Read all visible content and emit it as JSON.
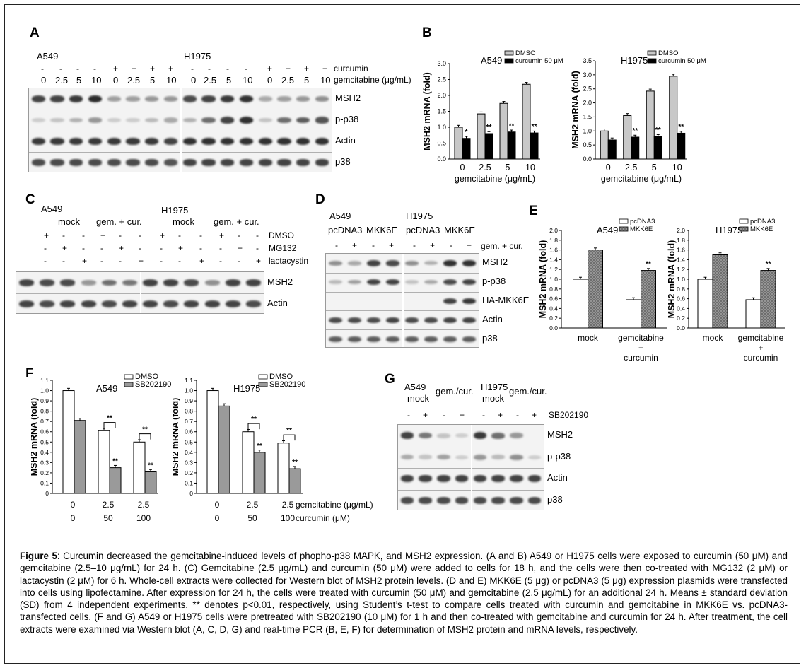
{
  "panels": {
    "A": {
      "label": "A",
      "cell_a549": "A549",
      "cell_h1975": "H1975",
      "curcumin_signs": [
        "-",
        "-",
        "-",
        "-",
        "+",
        "+",
        "+",
        "+",
        "-",
        "-",
        "-",
        "-",
        "+",
        "+",
        "+",
        "+"
      ],
      "gem_doses": [
        "0",
        "2.5",
        "5",
        "10",
        "0",
        "2.5",
        "5",
        "10",
        "0",
        "2.5",
        "5",
        "10",
        "0",
        "2.5",
        "5",
        "10"
      ],
      "row_curcumin": "curcumin",
      "row_gemcitabine": "gemcitabine (μg/mL)",
      "blots": [
        "MSH2",
        "p-p38",
        "Actin",
        "p38"
      ]
    },
    "B": {
      "label": "B",
      "xlabel": "gemcitabine (μg/mL)",
      "ylabel": "MSH2 mRNA (fold)"
    },
    "C": {
      "label": "C",
      "cell_a549": "A549",
      "cell_h1975": "H1975",
      "mock": "mock",
      "gemcur": "gem. + cur.",
      "rows": [
        {
          "label": "DMSO",
          "signs": [
            "+",
            "-",
            "-",
            "+",
            "-",
            "-",
            "+",
            "-",
            "-",
            "+",
            "-",
            "-"
          ]
        },
        {
          "label": "MG132",
          "signs": [
            "-",
            "+",
            "-",
            "-",
            "+",
            "-",
            "-",
            "+",
            "-",
            "-",
            "+",
            "-"
          ]
        },
        {
          "label": "lactacystin",
          "signs": [
            "-",
            "-",
            "+",
            "-",
            "-",
            "+",
            "-",
            "-",
            "+",
            "-",
            "-",
            "+"
          ]
        }
      ],
      "blots": [
        "MSH2",
        "Actin"
      ]
    },
    "D": {
      "label": "D",
      "cell_a549": "A549",
      "cell_h1975": "H1975",
      "pcdna3": "pcDNA3",
      "mkk6e": "MKK6E",
      "signs": [
        "-",
        "+",
        "-",
        "+",
        "-",
        "+",
        "-",
        "+"
      ],
      "row_label": "gem. + cur.",
      "blots": [
        "MSH2",
        "p-p38",
        "HA-MKK6E",
        "Actin",
        "p38"
      ]
    },
    "E": {
      "label": "E",
      "ylabel": "MSH2 mRNA (fold)",
      "xcat_mock": "mock",
      "xcat_gem1": "gemcitabine",
      "xcat_gem2": "+",
      "xcat_gem3": "curcumin"
    },
    "F": {
      "label": "F",
      "ylabel": "MSH2 mRNA (fold)",
      "gem_label": "gemcitabine (μg/mL)",
      "cur_label": "curcumin (μM)",
      "gem_vals": [
        "0",
        "2.5",
        "2.5"
      ],
      "cur_vals": [
        "0",
        "50",
        "100"
      ],
      "sig": "**"
    },
    "G": {
      "label": "G",
      "cell_a549": "A549",
      "cell_h1975": "H1975",
      "mock": "mock",
      "gemcur": "gem./cur.",
      "signs": [
        "-",
        "+",
        "-",
        "+",
        "-",
        "+",
        "-",
        "+"
      ],
      "row_label": "SB202190",
      "blots": [
        "MSH2",
        "p-p38",
        "Actin",
        "p38"
      ]
    }
  },
  "chart_data": [
    {
      "panel": "B-A549",
      "type": "bar",
      "title": "A549",
      "xlabel": "gemcitabine (μg/mL)",
      "ylabel": "MSH2 mRNA (fold)",
      "categories": [
        "0",
        "2.5",
        "5",
        "10"
      ],
      "ylim": [
        0,
        3.0
      ],
      "yticks": [
        "0.0",
        "0.5",
        "1.0",
        "1.5",
        "2.0",
        "2.5",
        "3.0"
      ],
      "series": [
        {
          "name": "DMSO",
          "values": [
            1.0,
            1.42,
            1.75,
            2.35
          ]
        },
        {
          "name": "curcumin 50 μM",
          "values": [
            0.65,
            0.8,
            0.85,
            0.82
          ]
        }
      ],
      "annotations": [
        "*",
        "**",
        "**",
        "**"
      ],
      "colors": {
        "DMSO": "#c8c8c8",
        "curcumin 50 μM": "#000000"
      },
      "legend": "top"
    },
    {
      "panel": "B-H1975",
      "type": "bar",
      "title": "H1975",
      "xlabel": "gemcitabine (μg/mL)",
      "ylabel": "MSH2 mRNA (fold)",
      "categories": [
        "0",
        "2.5",
        "5",
        "10"
      ],
      "ylim": [
        0,
        3.5
      ],
      "yticks": [
        "0.0",
        "0.5",
        "1.0",
        "1.5",
        "2.0",
        "2.5",
        "3.0",
        "3.5"
      ],
      "series": [
        {
          "name": "DMSO",
          "values": [
            1.0,
            1.55,
            2.42,
            2.95
          ]
        },
        {
          "name": "curcumin 50 μM",
          "values": [
            0.68,
            0.78,
            0.8,
            0.92
          ]
        }
      ],
      "annotations": [
        "",
        "**",
        "**",
        "**"
      ],
      "colors": {
        "DMSO": "#c8c8c8",
        "curcumin 50 μM": "#000000"
      },
      "legend": "top"
    },
    {
      "panel": "E-A549",
      "type": "bar",
      "title": "A549",
      "ylabel": "MSH2 mRNA (fold)",
      "categories": [
        "mock",
        "gemcitabine + curcumin"
      ],
      "ylim": [
        0,
        2.0
      ],
      "yticks": [
        "0.0",
        "0.2",
        "0.4",
        "0.6",
        "0.8",
        "1.0",
        "1.2",
        "1.4",
        "1.6",
        "1.8",
        "2.0"
      ],
      "series": [
        {
          "name": "pcDNA3",
          "values": [
            1.0,
            0.58
          ]
        },
        {
          "name": "MKK6E",
          "values": [
            1.6,
            1.18
          ]
        }
      ],
      "annotations": [
        "",
        "**"
      ],
      "colors": {
        "pcDNA3": "#ffffff",
        "MKK6E": "#9a9a9a"
      },
      "legend": "top"
    },
    {
      "panel": "E-H1975",
      "type": "bar",
      "title": "H1975",
      "ylabel": "MSH2 mRNA (fold)",
      "categories": [
        "mock",
        "gemcitabine + curcumin"
      ],
      "ylim": [
        0,
        2.0
      ],
      "yticks": [
        "0.0",
        "0.2",
        "0.4",
        "0.6",
        "0.8",
        "1.0",
        "1.2",
        "1.4",
        "1.6",
        "1.8",
        "2.0"
      ],
      "series": [
        {
          "name": "pcDNA3",
          "values": [
            1.0,
            0.58
          ]
        },
        {
          "name": "MKK6E",
          "values": [
            1.5,
            1.18
          ]
        }
      ],
      "annotations": [
        "",
        "**"
      ],
      "colors": {
        "pcDNA3": "#ffffff",
        "MKK6E": "#9a9a9a"
      },
      "legend": "top"
    },
    {
      "panel": "F-A549",
      "type": "bar",
      "title": "A549",
      "ylabel": "MSH2 mRNA (fold)",
      "categories": [
        "0/0",
        "2.5/50",
        "2.5/100"
      ],
      "ylim": [
        0,
        1.1
      ],
      "yticks": [
        "0",
        "0.1",
        "0.2",
        "0.3",
        "0.4",
        "0.5",
        "0.6",
        "0.7",
        "0.8",
        "0.9",
        "1.0",
        "1.1"
      ],
      "series": [
        {
          "name": "DMSO",
          "values": [
            1.0,
            0.61,
            0.5
          ]
        },
        {
          "name": "SB202190",
          "values": [
            0.71,
            0.25,
            0.21
          ]
        }
      ],
      "annotations": [
        "",
        "**",
        "**"
      ],
      "colors": {
        "DMSO": "#ffffff",
        "SB202190": "#9a9a9a"
      },
      "legend": "top"
    },
    {
      "panel": "F-H1975",
      "type": "bar",
      "title": "H1975",
      "ylabel": "MSH2 mRNA (fold)",
      "categories": [
        "0/0",
        "2.5/50",
        "2.5/100"
      ],
      "ylim": [
        0,
        1.1
      ],
      "yticks": [
        "0",
        "0.1",
        "0.2",
        "0.3",
        "0.4",
        "0.5",
        "0.6",
        "0.7",
        "0.8",
        "0.9",
        "1.0",
        "1.1"
      ],
      "series": [
        {
          "name": "DMSO",
          "values": [
            1.0,
            0.6,
            0.49
          ]
        },
        {
          "name": "SB202190",
          "values": [
            0.85,
            0.4,
            0.24
          ]
        }
      ],
      "annotations": [
        "",
        "**",
        "**"
      ],
      "colors": {
        "DMSO": "#ffffff",
        "SB202190": "#9a9a9a"
      },
      "legend": "top"
    }
  ],
  "caption": {
    "title": "Figure 5",
    "text": ": Curcumin decreased the gemcitabine-induced levels of phopho-p38 MAPK, and MSH2 expression. (A and B) A549 or H1975 cells were exposed to curcumin (50 μM) and gemcitabine (2.5–10 μg/mL) for 24 h. (C) Gemcitabine (2.5 μg/mL) and curcumin (50 μM) were added to cells for 18 h, and the cells were then co-treated with MG132 (2 μM) or lactacystin (2 μM) for 6 h. Whole-cell extracts were collected for Western blot of MSH2 protein levels. (D and E) MKK6E (5 μg) or pcDNA3 (5 μg) expression plasmids were transfected into cells using lipofectamine. After expression for 24 h, the cells were treated with curcumin (50 μM) and gemcitabine (2.5 μg/mL) for an additional 24 h. Means ± standard deviation (SD) from 4 independent experiments. ** denotes p<0.01, respectively, using Student’s t-test to compare cells treated with curcumin and gemcitabine in MKK6E vs. pcDNA3-transfected cells. (F and G) A549 or H1975 cells were pretreated with SB202190 (10 μM) for 1 h and then co-treated with gemcitabine and curcumin for 24 h. After treatment, the cell extracts were examined via Western blot (A, C, D, G) and real-time PCR (B, E, F) for determination of MSH2 protein and mRNA levels, respectively."
  }
}
